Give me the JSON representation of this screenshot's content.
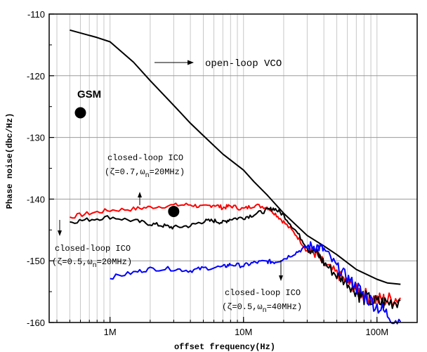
{
  "chart_data": {
    "type": "line",
    "x_scale": "log",
    "xlabel": "offset frequency(Hz)",
    "ylabel": "Phase noise(dbc/Hz)",
    "xlim": [
      350000,
      200000000
    ],
    "ylim": [
      -160,
      -110
    ],
    "x_ticks": [
      {
        "value": 1000000,
        "label": "1M"
      },
      {
        "value": 10000000,
        "label": "10M"
      },
      {
        "value": 100000000,
        "label": "100M"
      }
    ],
    "y_ticks": [
      {
        "value": -110,
        "label": "-110"
      },
      {
        "value": -120,
        "label": "-120"
      },
      {
        "value": -130,
        "label": "-130"
      },
      {
        "value": -140,
        "label": "-140"
      },
      {
        "value": -150,
        "label": "-150"
      },
      {
        "value": -160,
        "label": "-160"
      }
    ],
    "grid": true,
    "series": [
      {
        "key": "open-loop",
        "color": "#000000",
        "points": [
          [
            500000,
            -112.6
          ],
          [
            800000,
            -113.8
          ],
          [
            1000000,
            -114.5
          ],
          [
            1500000,
            -117.8
          ],
          [
            2000000,
            -120.8
          ],
          [
            3000000,
            -124.8
          ],
          [
            4000000,
            -127.7
          ],
          [
            5000000,
            -129.7
          ],
          [
            7000000,
            -132.7
          ],
          [
            10000000,
            -135.3
          ],
          [
            12000000,
            -137.2
          ],
          [
            15000000,
            -139.3
          ],
          [
            20000000,
            -142.3
          ],
          [
            30000000,
            -145.9
          ],
          [
            40000000,
            -147.6
          ],
          [
            50000000,
            -149
          ],
          [
            70000000,
            -151.4
          ],
          [
            100000000,
            -153
          ],
          [
            120000000,
            -153.6
          ],
          [
            150000000,
            -153.8
          ]
        ]
      },
      {
        "key": "closed-0.7-20MHz",
        "color": "#ff0000",
        "points": [
          [
            500000,
            -142.9
          ],
          [
            700000,
            -142.3
          ],
          [
            1000000,
            -141.8
          ],
          [
            1500000,
            -141.6
          ],
          [
            2000000,
            -141.3
          ],
          [
            3000000,
            -141
          ],
          [
            4000000,
            -140.9
          ],
          [
            5000000,
            -141.3
          ],
          [
            6000000,
            -140.9
          ],
          [
            7000000,
            -141.4
          ],
          [
            8000000,
            -141.1
          ],
          [
            10000000,
            -141.6
          ],
          [
            12000000,
            -141
          ],
          [
            15000000,
            -141.3
          ],
          [
            17000000,
            -142.2
          ],
          [
            20000000,
            -143.7
          ],
          [
            25000000,
            -145.9
          ],
          [
            30000000,
            -148.4
          ],
          [
            35000000,
            -148.8
          ],
          [
            40000000,
            -150.6
          ],
          [
            50000000,
            -152.1
          ],
          [
            60000000,
            -153.4
          ],
          [
            70000000,
            -154.6
          ],
          [
            80000000,
            -155.6
          ],
          [
            100000000,
            -156.3
          ],
          [
            120000000,
            -156.3
          ],
          [
            150000000,
            -156
          ]
        ]
      },
      {
        "key": "closed-0.5-20MHz",
        "color": "#000000",
        "points": [
          [
            500000,
            -143.7
          ],
          [
            700000,
            -143.3
          ],
          [
            1000000,
            -142.9
          ],
          [
            1500000,
            -143.5
          ],
          [
            2000000,
            -144
          ],
          [
            2500000,
            -144.3
          ],
          [
            3000000,
            -144.6
          ],
          [
            4000000,
            -144.3
          ],
          [
            5000000,
            -143.6
          ],
          [
            6000000,
            -143.5
          ],
          [
            7000000,
            -143.8
          ],
          [
            8000000,
            -143.2
          ],
          [
            10000000,
            -143
          ],
          [
            12000000,
            -142.5
          ],
          [
            15000000,
            -141.8
          ],
          [
            17000000,
            -141.5
          ],
          [
            20000000,
            -142.6
          ],
          [
            25000000,
            -145.3
          ],
          [
            30000000,
            -147.8
          ],
          [
            35000000,
            -148.6
          ],
          [
            40000000,
            -150.3
          ],
          [
            50000000,
            -152.4
          ],
          [
            60000000,
            -153.6
          ],
          [
            70000000,
            -155.1
          ],
          [
            80000000,
            -156
          ],
          [
            100000000,
            -156.8
          ],
          [
            120000000,
            -156.8
          ],
          [
            150000000,
            -156.4
          ]
        ]
      },
      {
        "key": "closed-0.5-40MHz",
        "color": "#0000ff",
        "points": [
          [
            1000000,
            -152.7
          ],
          [
            1500000,
            -151.9
          ],
          [
            2000000,
            -151.3
          ],
          [
            3000000,
            -151.3
          ],
          [
            4000000,
            -151.6
          ],
          [
            5000000,
            -151.2
          ],
          [
            7000000,
            -151
          ],
          [
            8000000,
            -150.6
          ],
          [
            10000000,
            -150.8
          ],
          [
            12000000,
            -150.3
          ],
          [
            15000000,
            -150.1
          ],
          [
            17000000,
            -150.2
          ],
          [
            20000000,
            -149.7
          ],
          [
            25000000,
            -148.6
          ],
          [
            30000000,
            -147.7
          ],
          [
            35000000,
            -147.6
          ],
          [
            40000000,
            -148.2
          ],
          [
            50000000,
            -151
          ],
          [
            60000000,
            -152.7
          ],
          [
            70000000,
            -154.2
          ],
          [
            80000000,
            -155.6
          ],
          [
            100000000,
            -157.3
          ],
          [
            120000000,
            -158.7
          ],
          [
            150000000,
            -159.9
          ]
        ]
      }
    ],
    "markers": [
      {
        "key": "gsm-point",
        "x": 600000,
        "y": -126
      },
      {
        "key": "icl-point",
        "x": 3000000,
        "y": -142
      }
    ],
    "annotations": {
      "open_loop": "open-loop VCO",
      "gsm": "GSM",
      "closed_a_title": "closed-loop ICO",
      "closed_a_params": "(ζ=0.7,ω",
      "closed_a_sub": "n",
      "closed_a_freq": "=20MHz)",
      "closed_b_title": "closed-loop ICO",
      "closed_b_params": "(ζ=0.5,ω",
      "closed_b_sub": "n",
      "closed_b_freq": "=20MHz)",
      "closed_c_title": "closed-loop ICO",
      "closed_c_params": "(ζ=0.5,ω",
      "closed_c_sub": "n",
      "closed_c_freq": "=40MHz)"
    }
  }
}
